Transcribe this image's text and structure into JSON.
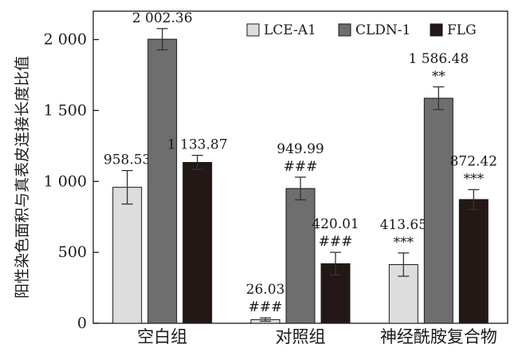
{
  "chart_data": {
    "type": "bar",
    "categories": [
      "空白组",
      "对照组",
      "神经酰胺复合物"
    ],
    "ylabel": "阳性染色面积与真表皮连接长度比值",
    "xlabel": "",
    "ylim": [
      0,
      2200
    ],
    "yticks": [
      0,
      500,
      1000,
      1500,
      2000
    ],
    "ytick_labels": [
      "0",
      "500",
      "1 000",
      "1 500",
      "2 000"
    ],
    "legend_position": "top-right",
    "grid": false,
    "error_bars": true,
    "series": [
      {
        "name": "LCE-A1",
        "color": "#dcdddc",
        "values": [
          958.53,
          26.03,
          413.65
        ],
        "errors": [
          118,
          12,
          82
        ],
        "value_labels": [
          "958.53",
          "26.03",
          "413.65"
        ],
        "sig": [
          "",
          "###",
          "***"
        ]
      },
      {
        "name": "CLDN-1",
        "color": "#6e6e6e",
        "values": [
          2002.36,
          949.99,
          1586.48
        ],
        "errors": [
          75,
          80,
          80
        ],
        "value_labels": [
          "2 002.36",
          "949.99",
          "1 586.48"
        ],
        "sig": [
          "",
          "###",
          "**"
        ]
      },
      {
        "name": "FLG",
        "color": "#231815",
        "values": [
          1133.87,
          420.01,
          872.42
        ],
        "errors": [
          50,
          80,
          70
        ],
        "value_labels": [
          "1 133.87",
          "420.01",
          "872.42"
        ],
        "sig": [
          "",
          "###",
          "***"
        ]
      }
    ]
  }
}
